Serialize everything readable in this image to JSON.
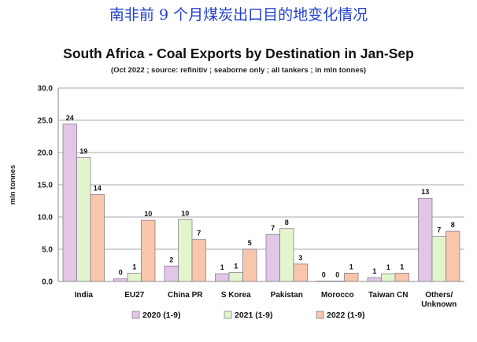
{
  "header": {
    "cn_title": "南非前 9 个月煤炭出口目的地变化情况"
  },
  "chart_data": {
    "type": "bar",
    "title": "South Africa - Coal Exports by Destination in Jan-Sep",
    "subtitle": "(Oct 2022 ; source: refinitiv ; seaborne only ; all tankers ; in mln tonnes)",
    "ylabel": "mln tonnes",
    "xlabel": "",
    "ylim": [
      0,
      30
    ],
    "yticks": [
      "0.0",
      "5.0",
      "10.0",
      "15.0",
      "20.0",
      "25.0",
      "30.0"
    ],
    "grid": true,
    "legend_position": "bottom",
    "categories": [
      [
        "India"
      ],
      [
        "EU27"
      ],
      [
        "China PR"
      ],
      [
        "S Korea"
      ],
      [
        "Pakistan"
      ],
      [
        "Morocco"
      ],
      [
        "Taiwan CN"
      ],
      [
        "Others/",
        "Unknown"
      ]
    ],
    "series": [
      {
        "name": "2020 (1-9)",
        "color": "#e2c6e6",
        "values": [
          24.4,
          0.4,
          2.4,
          1.2,
          7.3,
          0.05,
          0.6,
          12.9
        ],
        "labels": [
          "24",
          "0",
          "2",
          "1",
          "7",
          "0",
          "1",
          "13"
        ]
      },
      {
        "name": "2021 (1-9)",
        "color": "#e3f5cc",
        "values": [
          19.2,
          1.3,
          9.6,
          1.4,
          8.2,
          0.05,
          1.2,
          7.0
        ],
        "labels": [
          "19",
          "1",
          "10",
          "1",
          "8",
          "0",
          "1",
          "7"
        ]
      },
      {
        "name": "2022 (1-9)",
        "color": "#f8c6ac",
        "values": [
          13.5,
          9.5,
          6.5,
          5.0,
          2.7,
          1.3,
          1.3,
          7.8
        ],
        "labels": [
          "14",
          "10",
          "7",
          "5",
          "3",
          "1",
          "1",
          "8"
        ]
      }
    ]
  }
}
